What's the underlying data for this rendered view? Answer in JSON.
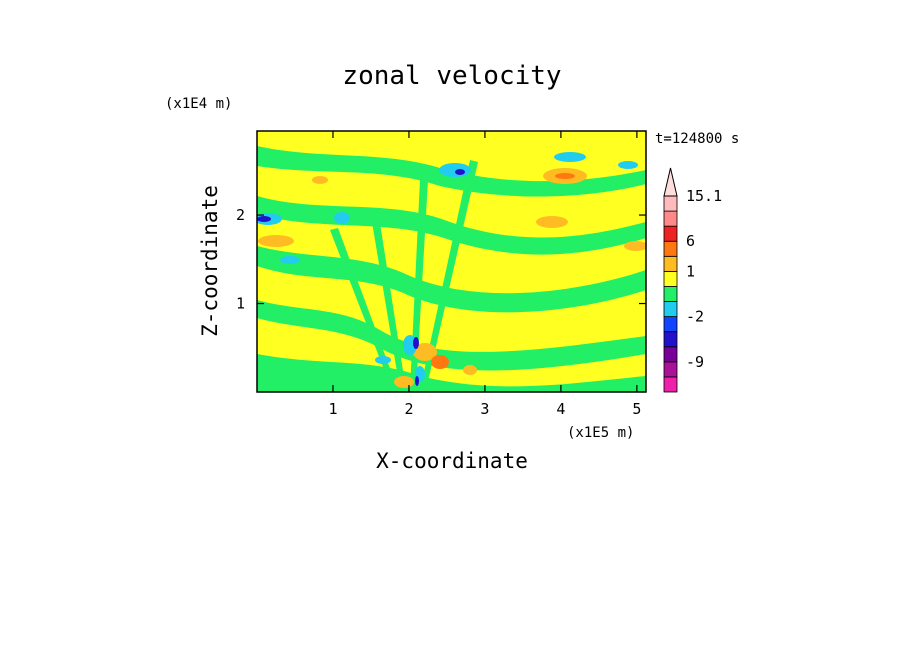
{
  "chart_data": {
    "type": "heatmap",
    "title": "zonal velocity",
    "xlabel": "X-coordinate",
    "ylabel": "Z-coordinate",
    "x_unit": "(x1E5 m)",
    "y_unit": "(x1E4 m)",
    "time_label": "t=124800 s",
    "xlim": [
      0,
      5.12
    ],
    "ylim": [
      0,
      2.95
    ],
    "x_ticks": [
      1,
      2,
      3,
      4,
      5
    ],
    "x_tick_labels": [
      "1",
      "2",
      "3",
      "4",
      "5"
    ],
    "y_ticks": [
      1,
      2
    ],
    "y_tick_labels": [
      "1",
      "2"
    ],
    "colorbar": {
      "levels": [
        {
          "color": "#ee22aa",
          "label": ""
        },
        {
          "color": "#aa1199",
          "label": "-9"
        },
        {
          "color": "#770099",
          "label": ""
        },
        {
          "color": "#2211cc",
          "label": ""
        },
        {
          "color": "#1144ff",
          "label": "-2"
        },
        {
          "color": "#22ccee",
          "label": ""
        },
        {
          "color": "#22ee66",
          "label": ""
        },
        {
          "color": "#ffff22",
          "label": "1"
        },
        {
          "color": "#ffbb22",
          "label": ""
        },
        {
          "color": "#ff7711",
          "label": "6"
        },
        {
          "color": "#ee2222",
          "label": ""
        },
        {
          "color": "#ff8888",
          "label": ""
        },
        {
          "color": "#ffbbbb",
          "label": "15.1"
        }
      ],
      "extend": "max"
    }
  }
}
